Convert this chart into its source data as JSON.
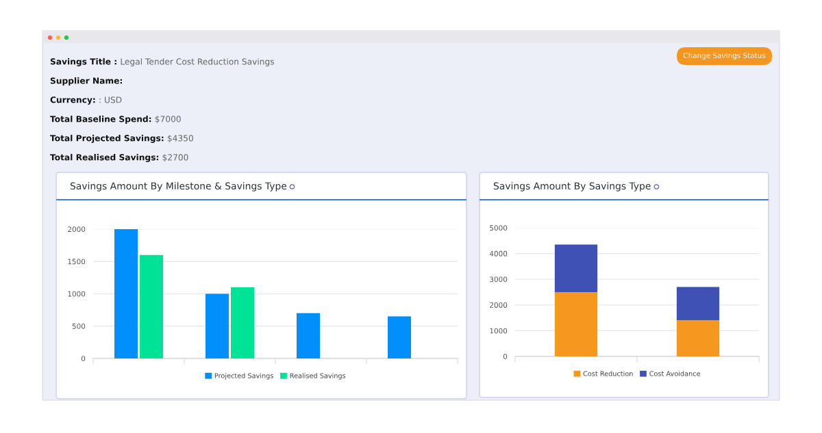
{
  "chart_data": [
    {
      "type": "bar",
      "title": "Savings Amount By Milestone & Savings Type",
      "categories": [
        null,
        null,
        null,
        null
      ],
      "series": [
        {
          "name": "Projected Savings",
          "color": "#008ffb",
          "values": [
            2000,
            1000,
            700,
            650
          ]
        },
        {
          "name": "Realised Savings",
          "color": "#00e396",
          "values": [
            1600,
            1100,
            null,
            null
          ]
        }
      ],
      "ylim": [
        0,
        2000
      ],
      "yticks": [
        0,
        500,
        1000,
        1500,
        2000
      ],
      "grid": "y",
      "legend": "bottom",
      "annotations": [
        "Savings Title : Legal Tender Cost Reduction Savings",
        "Supplier Name:",
        "Currency: : USD",
        "Total Baseline Spend: $7000",
        "Total Projected Savings: $4350",
        "Total Realised Savings: $2700"
      ]
    },
    {
      "type": "bar",
      "stacked": true,
      "title": "Savings Amount By Savings Type",
      "categories": [
        null,
        null
      ],
      "series": [
        {
          "name": "Cost Reduction",
          "color": "#f7981e",
          "values": [
            2500,
            1400
          ]
        },
        {
          "name": "Cost Avoidance",
          "color": "#3f51b5",
          "values": [
            1850,
            1300
          ]
        }
      ],
      "ylim": [
        0,
        5000
      ],
      "yticks": [
        0,
        1000,
        2000,
        3000,
        4000,
        5000
      ],
      "grid": "y",
      "legend": "bottom",
      "annotations": [
        "Change Savings Status"
      ]
    }
  ]
}
